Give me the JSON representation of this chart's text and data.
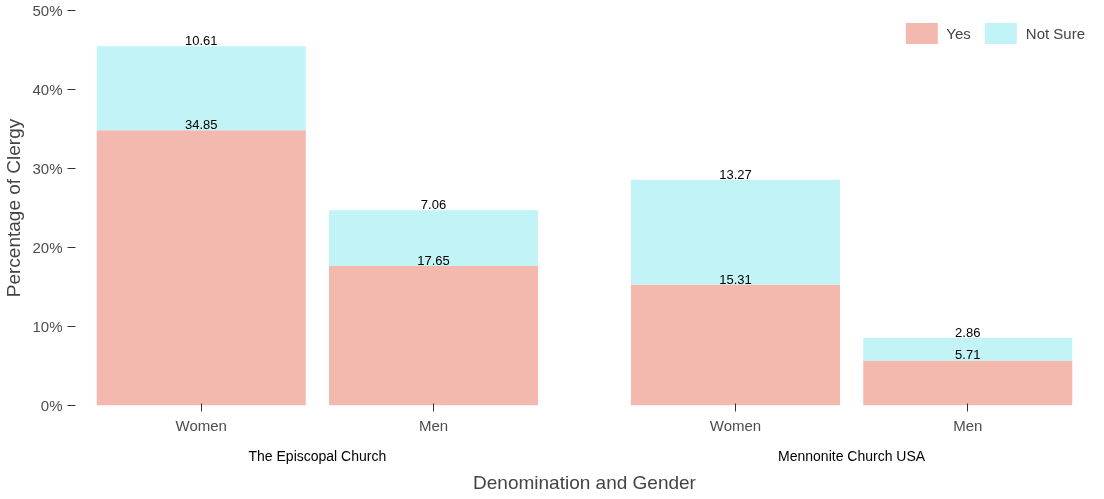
{
  "chart_data": {
    "type": "bar",
    "stacked": true,
    "xlabel": "Denomination and Gender",
    "ylabel": "Percentage of Clergy",
    "categories": [
      "Women",
      "Men",
      "Women",
      "Men"
    ],
    "annotations": [
      "The Episcopal Church",
      "Mennonite Church USA"
    ],
    "series": [
      {
        "name": "Yes",
        "color": "#f4b9ae",
        "values": [
          34.85,
          17.65,
          15.31,
          5.71
        ]
      },
      {
        "name": "Not Sure",
        "color": "#c2f3f6",
        "values": [
          10.61,
          7.06,
          13.27,
          2.86
        ]
      }
    ],
    "ylim": [
      0,
      50
    ],
    "yticks": [
      {
        "value": 0,
        "label": "0%"
      },
      {
        "value": 10,
        "label": "10%"
      },
      {
        "value": 20,
        "label": "20%"
      },
      {
        "value": 30,
        "label": "30%"
      },
      {
        "value": 40,
        "label": "40%"
      },
      {
        "value": 50,
        "label": "50%"
      }
    ],
    "data_labels": true,
    "grid": false,
    "legend": "top right"
  }
}
